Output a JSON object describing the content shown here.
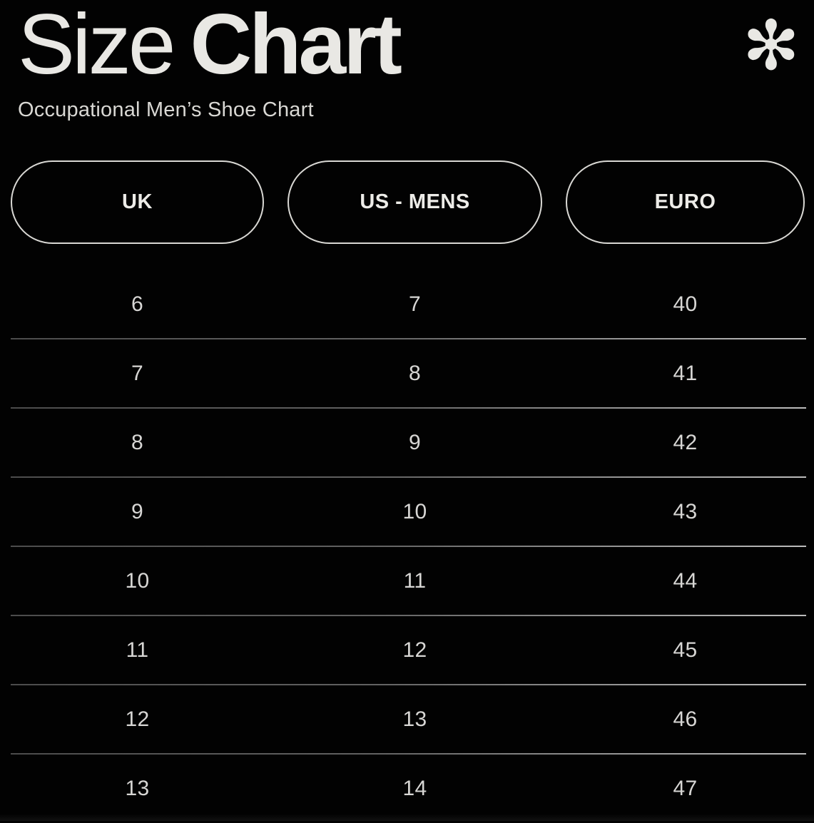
{
  "header": {
    "title_regular": "Size",
    "title_bold": "Chart",
    "subtitle": "Occupational Men’s Shoe Chart",
    "decoration_glyph": "✻"
  },
  "columns": [
    {
      "id": "uk",
      "label": "UK"
    },
    {
      "id": "us-mens",
      "label": "US - MENS"
    },
    {
      "id": "euro",
      "label": "EURO"
    }
  ],
  "rows": [
    [
      "6",
      "7",
      "40"
    ],
    [
      "7",
      "8",
      "41"
    ],
    [
      "8",
      "9",
      "42"
    ],
    [
      "9",
      "10",
      "43"
    ],
    [
      "10",
      "11",
      "44"
    ],
    [
      "11",
      "12",
      "45"
    ],
    [
      "12",
      "13",
      "46"
    ],
    [
      "13",
      "14",
      "47"
    ]
  ],
  "colors": {
    "background": "#020202",
    "title_text": "#e9e8e4",
    "subtitle_text": "#d9d8d4",
    "pill_border": "#d9d8d4",
    "pill_text": "#edece8",
    "cell_text": "#d7d6d4",
    "divider_left": "#4c4c4c",
    "divider_right": "#bcbcbc"
  },
  "chart_data": {
    "type": "table",
    "title": "Size Chart",
    "subtitle": "Occupational Men’s Shoe Chart",
    "columns": [
      "UK",
      "US - MENS",
      "EURO"
    ],
    "rows": [
      [
        6,
        7,
        40
      ],
      [
        7,
        8,
        41
      ],
      [
        8,
        9,
        42
      ],
      [
        9,
        10,
        43
      ],
      [
        10,
        11,
        44
      ],
      [
        11,
        12,
        45
      ],
      [
        12,
        13,
        46
      ],
      [
        13,
        14,
        47
      ]
    ]
  }
}
